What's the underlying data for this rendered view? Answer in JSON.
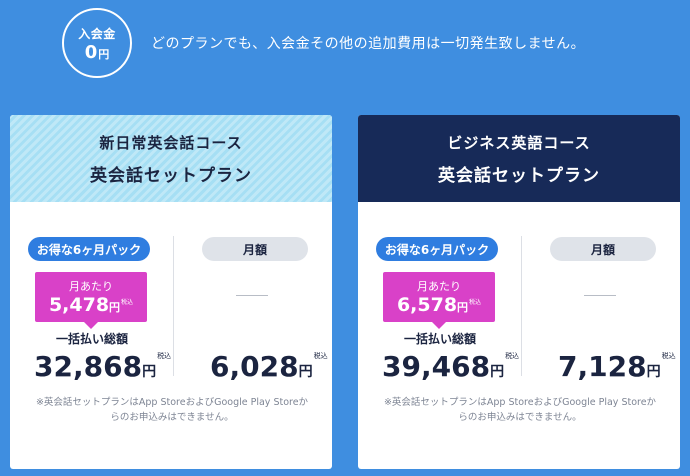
{
  "banner": {
    "fee_label": "入会金",
    "fee_value": "0",
    "fee_unit": "円",
    "message": "どのプランでも、入会金その他の追加費用は一切発生致しません。"
  },
  "plans": [
    {
      "course_name": "新日常英会話コース",
      "plan_name": "英会話セットプラン",
      "package_label": "お得な6ヶ月パック",
      "monthly_label": "月額",
      "per_month_label": "月あたり",
      "per_month_price": "5,478",
      "lump_label": "一括払い総額",
      "lump_price": "32,868",
      "monthly_price": "6,028",
      "yen": "円",
      "tax": "税込",
      "note": "※英会話セットプランはApp StoreおよびGoogle Play Storeからのお申込みはできません。"
    },
    {
      "course_name": "ビジネス英語コース",
      "plan_name": "英会話セットプラン",
      "package_label": "お得な6ヶ月パック",
      "monthly_label": "月額",
      "per_month_label": "月あたり",
      "per_month_price": "6,578",
      "lump_label": "一括払い総額",
      "lump_price": "39,468",
      "monthly_price": "7,128",
      "yen": "円",
      "tax": "税込",
      "note": "※英会話セットプランはApp StoreおよびGoogle Play Storeからのお申込みはできません。"
    }
  ],
  "colors": {
    "background": "#3f8ee0",
    "business_header": "#172a58",
    "per_month_box": "#d941c8",
    "package_pill": "#2f7de0"
  }
}
